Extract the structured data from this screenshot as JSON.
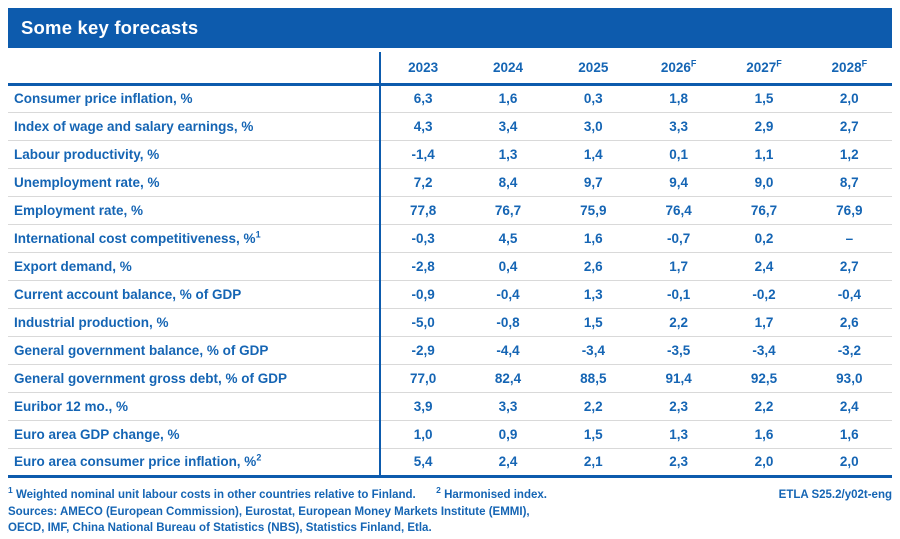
{
  "title": "Some key forecasts",
  "colors": {
    "brand_blue": "#0d5bad",
    "text_blue": "#1565b4",
    "separator_gray": "#d9d9d9",
    "background": "#ffffff"
  },
  "footer": {
    "note1_marker": "1",
    "note1_text": "Weighted nominal unit labour costs in other countries relative to Finland.",
    "note2_marker": "2",
    "note2_text": "Harmonised index.",
    "sources_line1": "Sources: AMECO (European Commission), Eurostat, European Money Markets Institute (EMMI),",
    "sources_line2": "OECD, IMF, China National Bureau of Statistics (NBS), Statistics Finland, Etla.",
    "doc_ref": "ETLA S25.2/y02t-eng"
  },
  "chart_data": {
    "type": "table",
    "title": "Some key forecasts",
    "columns": [
      "2023",
      "2024",
      "2025",
      "2026",
      "2027",
      "2028"
    ],
    "forecast_flags": [
      false,
      false,
      false,
      true,
      true,
      true
    ],
    "forecast_superscript": "F",
    "rows": [
      {
        "label": "Consumer price inflation, %",
        "sup": "",
        "values": [
          "6,3",
          "1,6",
          "0,3",
          "1,8",
          "1,5",
          "2,0"
        ]
      },
      {
        "label": "Index of wage and salary earnings, %",
        "sup": "",
        "values": [
          "4,3",
          "3,4",
          "3,0",
          "3,3",
          "2,9",
          "2,7"
        ]
      },
      {
        "label": "Labour productivity, %",
        "sup": "",
        "values": [
          "-1,4",
          "1,3",
          "1,4",
          "0,1",
          "1,1",
          "1,2"
        ]
      },
      {
        "label": "Unemployment rate, %",
        "sup": "",
        "values": [
          "7,2",
          "8,4",
          "9,7",
          "9,4",
          "9,0",
          "8,7"
        ]
      },
      {
        "label": "Employment rate, %",
        "sup": "",
        "values": [
          "77,8",
          "76,7",
          "75,9",
          "76,4",
          "76,7",
          "76,9"
        ]
      },
      {
        "label": "International cost competitiveness, %",
        "sup": "1",
        "values": [
          "-0,3",
          "4,5",
          "1,6",
          "-0,7",
          "0,2",
          "–"
        ]
      },
      {
        "label": "Export demand, %",
        "sup": "",
        "values": [
          "-2,8",
          "0,4",
          "2,6",
          "1,7",
          "2,4",
          "2,7"
        ]
      },
      {
        "label": "Current account balance, % of GDP",
        "sup": "",
        "values": [
          "-0,9",
          "-0,4",
          "1,3",
          "-0,1",
          "-0,2",
          "-0,4"
        ]
      },
      {
        "label": "Industrial production, %",
        "sup": "",
        "values": [
          "-5,0",
          "-0,8",
          "1,5",
          "2,2",
          "1,7",
          "2,6"
        ]
      },
      {
        "label": "General government balance, % of GDP",
        "sup": "",
        "values": [
          "-2,9",
          "-4,4",
          "-3,4",
          "-3,5",
          "-3,4",
          "-3,2"
        ]
      },
      {
        "label": "General government gross debt, % of GDP",
        "sup": "",
        "values": [
          "77,0",
          "82,4",
          "88,5",
          "91,4",
          "92,5",
          "93,0"
        ]
      },
      {
        "label": "Euribor 12 mo., %",
        "sup": "",
        "values": [
          "3,9",
          "3,3",
          "2,2",
          "2,3",
          "2,2",
          "2,4"
        ]
      },
      {
        "label": "Euro area GDP change, %",
        "sup": "",
        "values": [
          "1,0",
          "0,9",
          "1,5",
          "1,3",
          "1,6",
          "1,6"
        ]
      },
      {
        "label": "Euro area consumer price inflation, %",
        "sup": "2",
        "values": [
          "5,4",
          "2,4",
          "2,1",
          "2,3",
          "2,0",
          "2,0"
        ]
      }
    ]
  }
}
